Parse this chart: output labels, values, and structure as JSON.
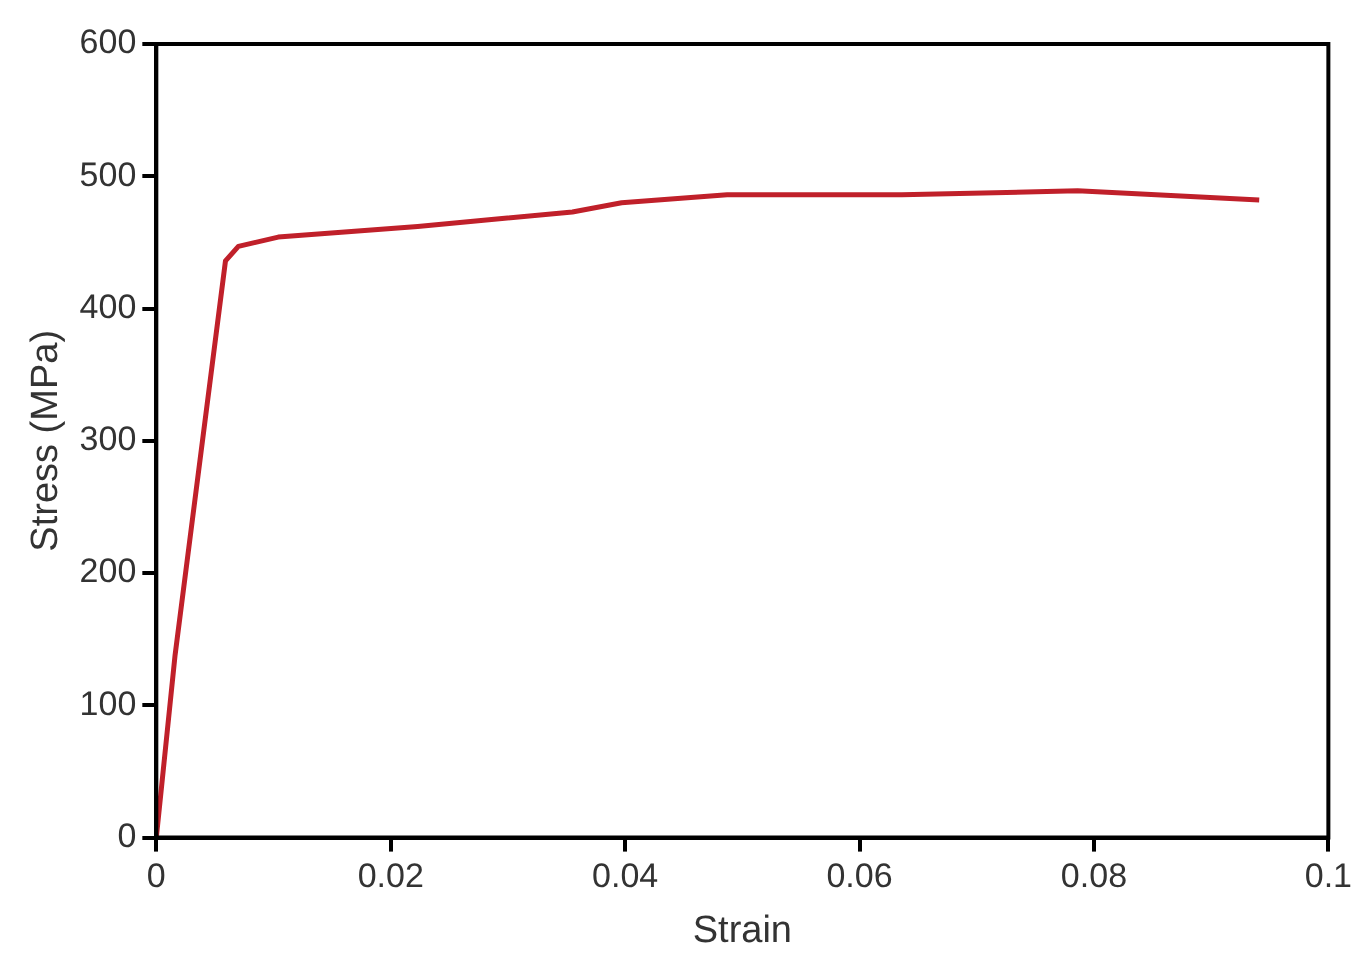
{
  "chart_data": {
    "type": "line",
    "xlabel": "Strain",
    "ylabel": "Stress (MPa)",
    "x": [
      0,
      0.0016,
      0.0059,
      0.007,
      0.0104,
      0.0223,
      0.0295,
      0.0355,
      0.0397,
      0.0487,
      0.0636,
      0.0786,
      0.0941
    ],
    "series": [
      {
        "color": "#c0202a",
        "values": [
          0,
          138,
          436,
          447,
          454,
          462,
          468,
          473,
          480,
          486,
          486,
          489,
          482
        ]
      }
    ],
    "xlim": [
      0,
      0.1
    ],
    "xticks": [
      0,
      0.02,
      0.04,
      0.06,
      0.08,
      {
        "value": 0.1,
        "label": "0.1"
      }
    ],
    "ylim": [
      0,
      600
    ],
    "yticks": [
      0,
      100,
      200,
      300,
      400,
      500,
      600
    ],
    "grid": false,
    "legend": false,
    "marker": "none",
    "line_style": "solid"
  }
}
